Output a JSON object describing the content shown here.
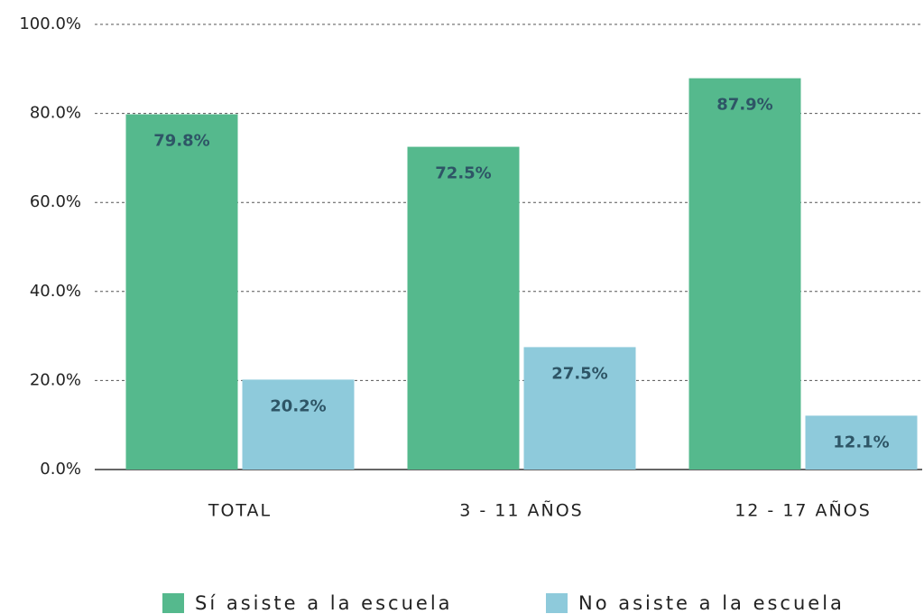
{
  "chart_data": {
    "type": "bar",
    "categories": [
      "TOTAL",
      "3 - 11 AÑOS",
      "12 - 17 AÑOS"
    ],
    "series": [
      {
        "name": "Sí asiste a la escuela",
        "color": "#55b98d",
        "values": [
          79.8,
          72.5,
          87.9
        ],
        "value_labels": [
          "79.8%",
          "72.5%",
          "87.9%"
        ]
      },
      {
        "name": "No asiste a la escuela",
        "color": "#8ecadb",
        "values": [
          20.2,
          27.5,
          12.1
        ],
        "value_labels": [
          "20.2%",
          "27.5%",
          "12.1%"
        ]
      }
    ],
    "ylim": [
      0,
      100
    ],
    "yticks": [
      {
        "value": 0,
        "label": "0.0%"
      },
      {
        "value": 20,
        "label": "20.0%"
      },
      {
        "value": 40,
        "label": "40.0%"
      },
      {
        "value": 60,
        "label": "60.0%"
      },
      {
        "value": 80,
        "label": "80.0%"
      },
      {
        "value": 100,
        "label": "100.0%"
      }
    ],
    "grid": true,
    "legend": "bottom"
  }
}
